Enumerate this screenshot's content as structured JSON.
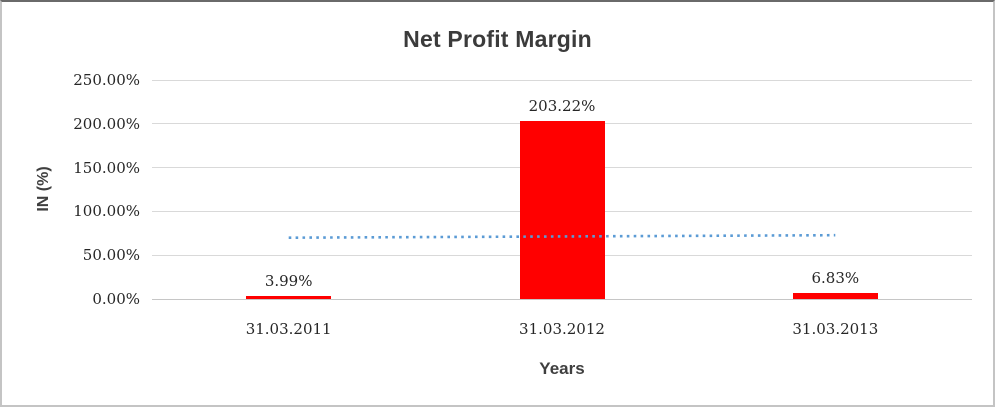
{
  "chart_data": {
    "type": "bar",
    "title": "Net Profit Margin",
    "xlabel": "Years",
    "ylabel": "IN (%)",
    "categories": [
      "31.03.2011",
      "31.03.2012",
      "31.03.2013"
    ],
    "values": [
      3.99,
      203.22,
      6.83
    ],
    "data_labels": [
      "3.99%",
      "203.22%",
      "6.83%"
    ],
    "ylim": [
      0,
      250
    ],
    "ytick_step": 50,
    "ytick_labels": [
      "0.00%",
      "50.00%",
      "100.00%",
      "150.00%",
      "200.00%",
      "250.00%"
    ],
    "grid": true,
    "legend": "none",
    "bar_color": "#ff0000",
    "grid_color": "#d9d9d9",
    "trendline": {
      "kind": "linear",
      "style": "dotted",
      "color": "#5b9bd5",
      "start_value": 70.0,
      "end_value": 72.8
    }
  }
}
